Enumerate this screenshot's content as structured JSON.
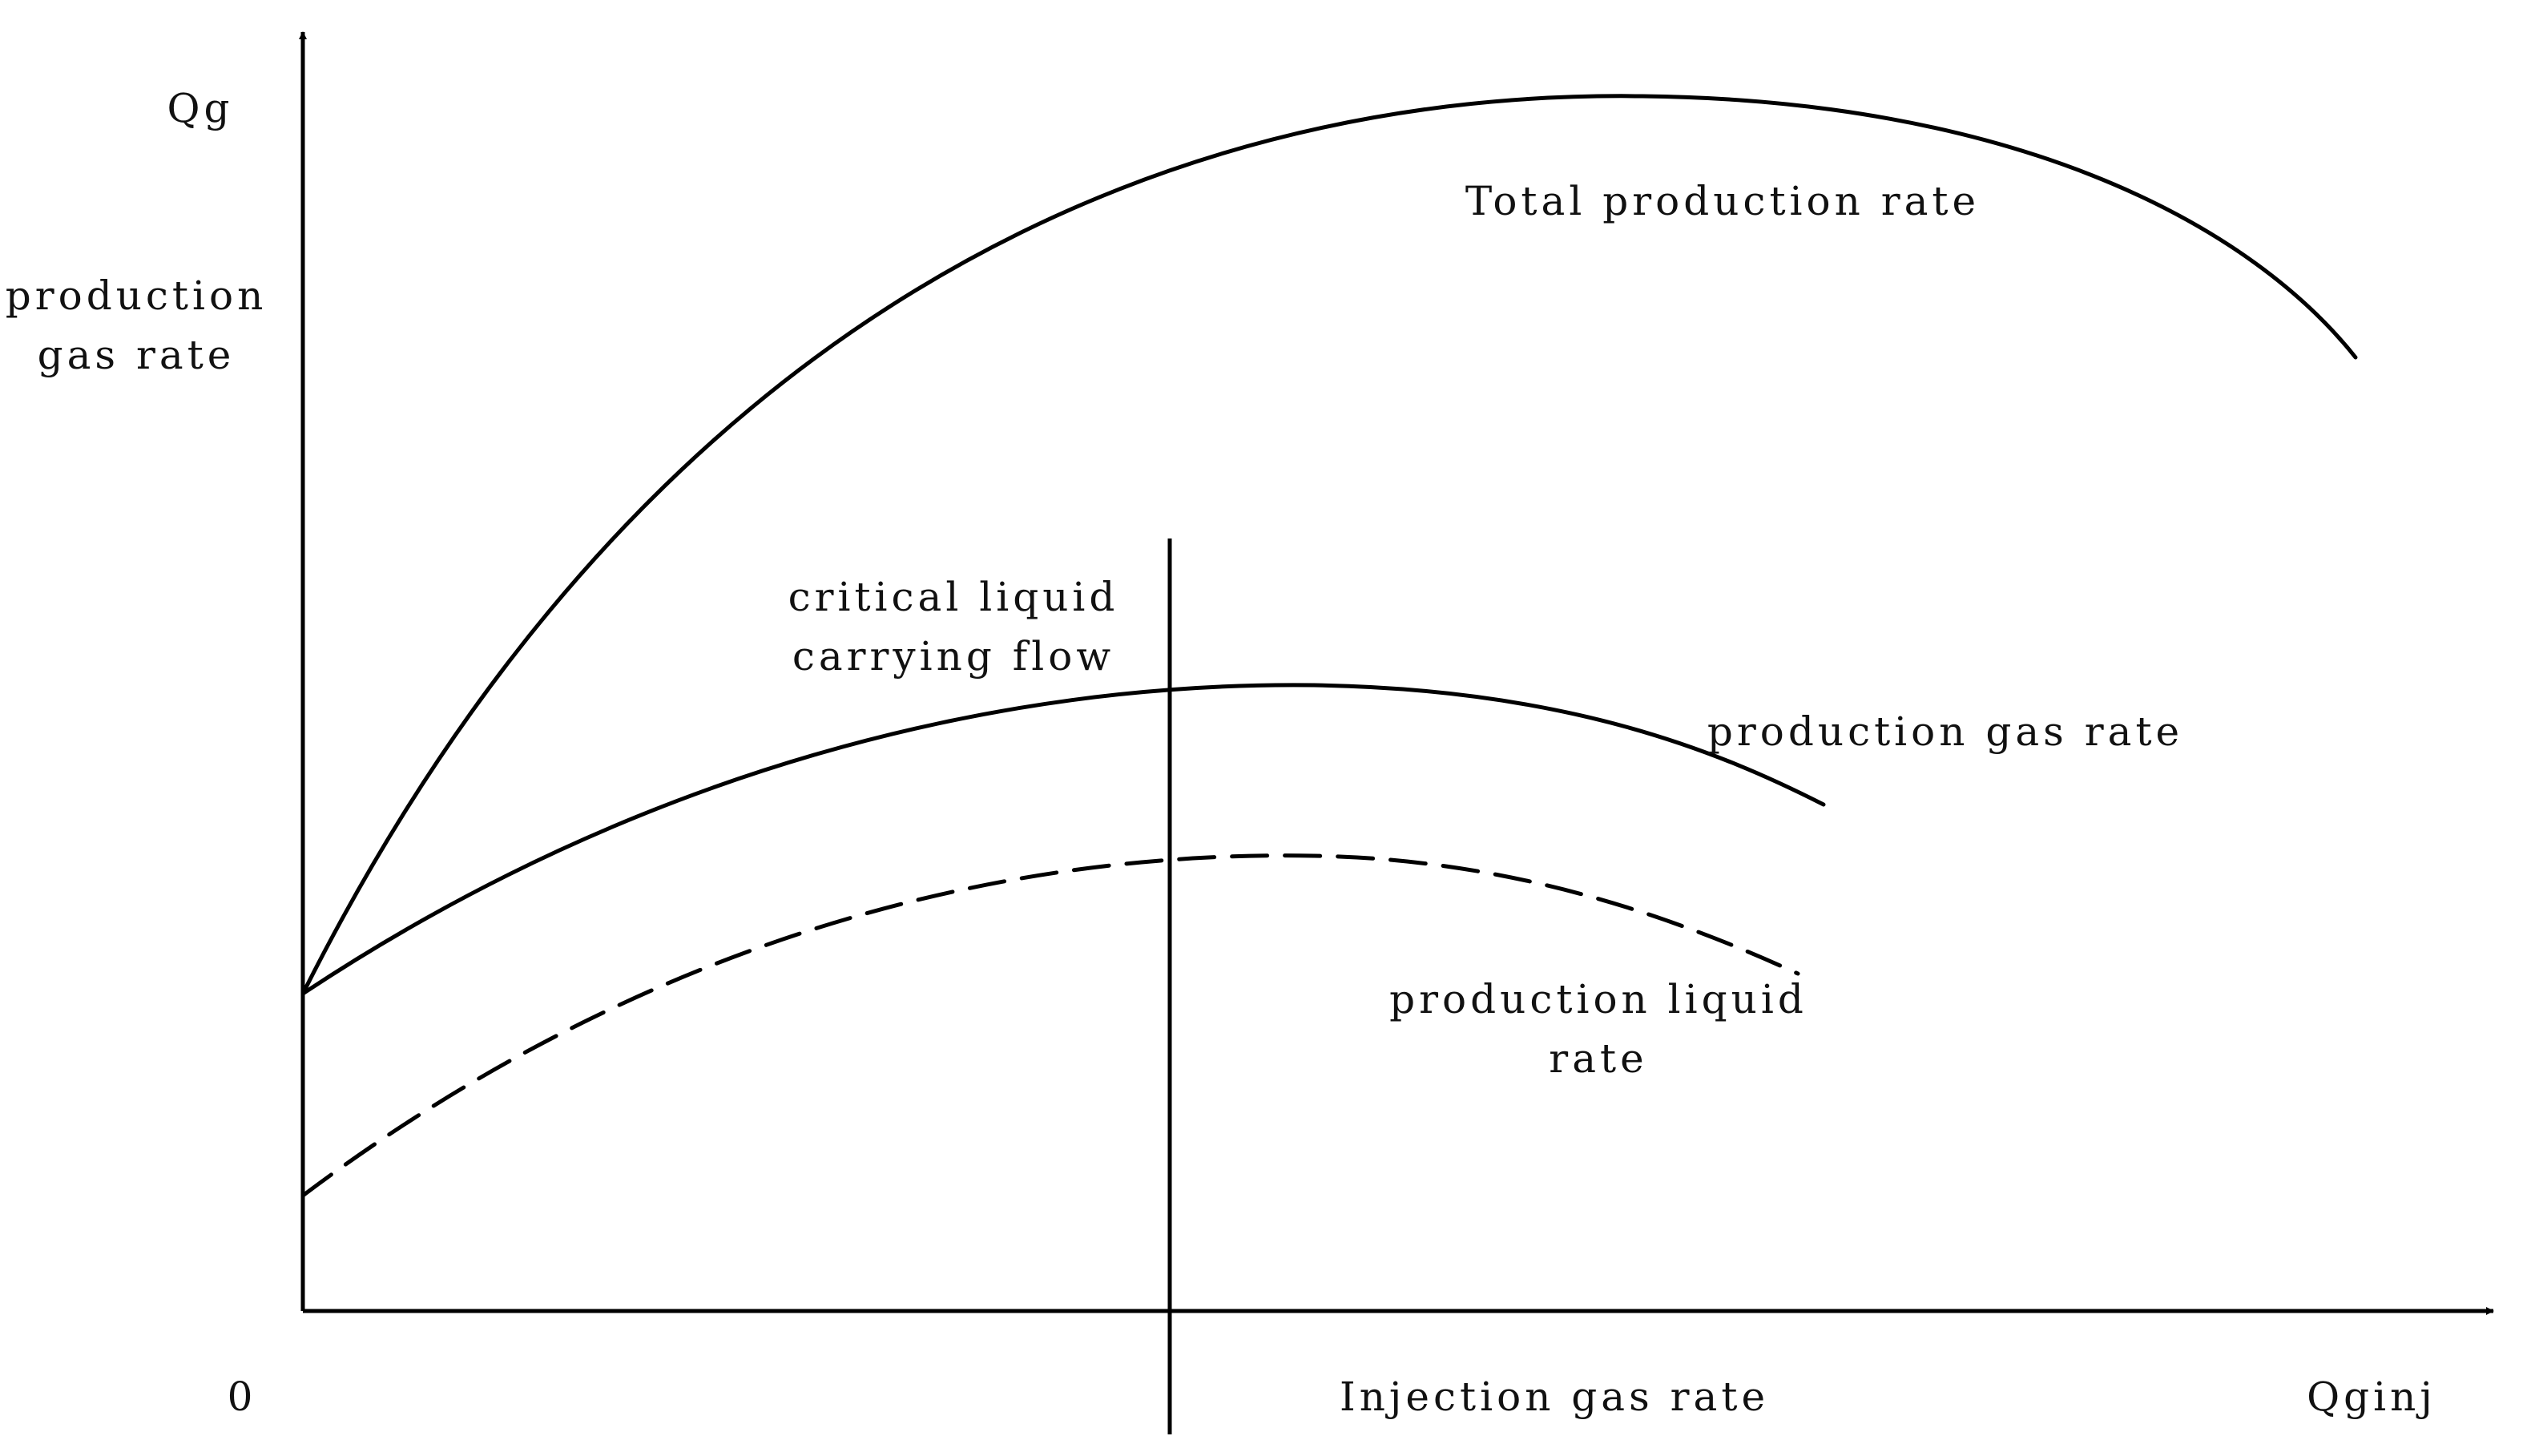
{
  "y_axis": {
    "unit_label": "Qg",
    "title_line1": "production",
    "title_line2": "gas rate"
  },
  "x_axis": {
    "origin_label": "0",
    "title": "Injection gas rate",
    "unit_label": "Qginj"
  },
  "curves": {
    "total": {
      "label": "Total production rate",
      "style": "solid"
    },
    "gas": {
      "label": "production gas rate",
      "style": "solid"
    },
    "liquid": {
      "label_line1": "production liquid",
      "label_line2": "rate",
      "style": "dashed"
    }
  },
  "critical_line": {
    "label_line1": "critical liquid",
    "label_line2": "carrying flow"
  },
  "colors": {
    "stroke": "#000000",
    "text": "#111111",
    "background": "#ffffff"
  }
}
